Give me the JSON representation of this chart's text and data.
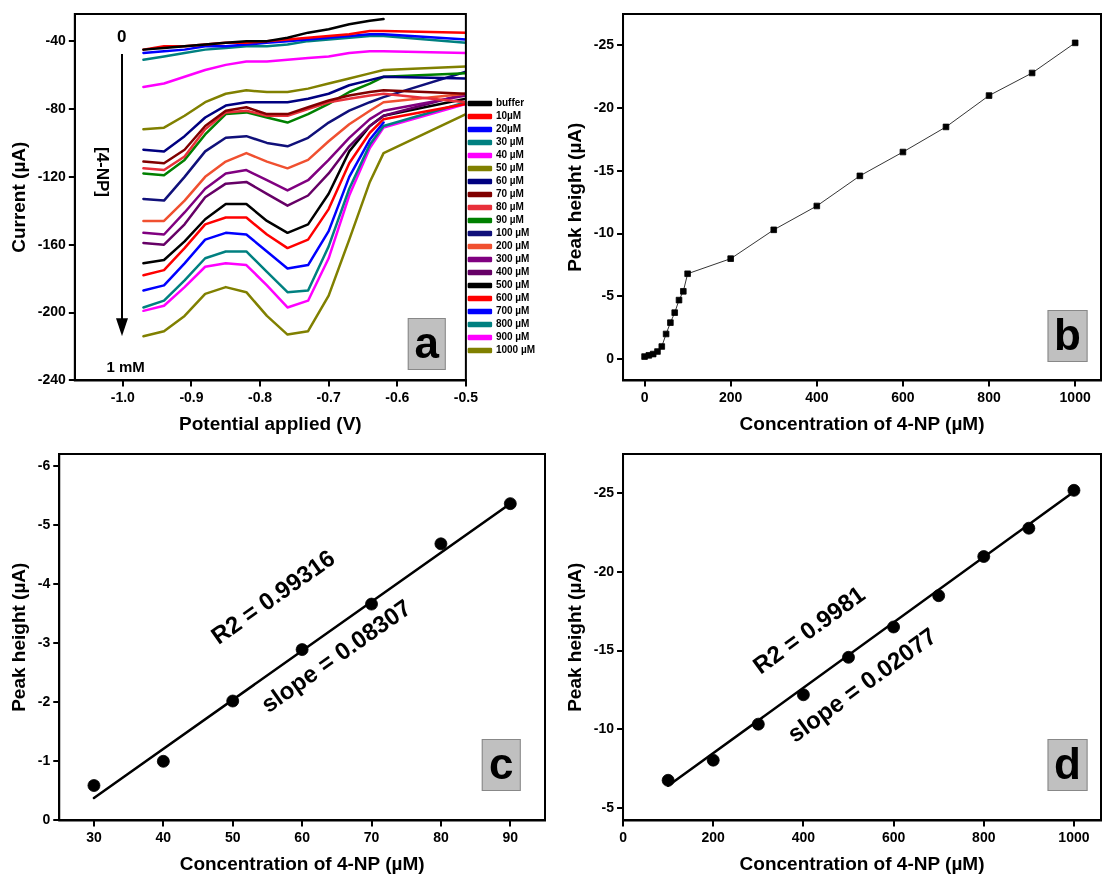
{
  "chart_data": [
    {
      "type": "line",
      "xlabel": "Potential applied (V)",
      "ylabel": "Current (µA)",
      "marker": "none",
      "legend": "right",
      "xlim": [
        -1.07,
        -0.5
      ],
      "xticks": [
        {
          "value": -1,
          "label": "-1.0"
        },
        -0.9,
        -0.8,
        -0.7,
        -0.6,
        -0.5
      ],
      "ylim": [
        -240,
        -24
      ],
      "yticks": [
        -240,
        -200,
        -160,
        -120,
        -80,
        -40
      ],
      "x": [
        -0.97,
        -0.94,
        -0.91,
        -0.88,
        -0.85,
        -0.82,
        -0.79,
        -0.76,
        -0.73,
        -0.7,
        -0.67,
        -0.64,
        -0.62,
        -0.5
      ],
      "series": [
        {
          "name": "buffer",
          "color": "#000000",
          "values": [
            -45,
            -44,
            -43,
            -42,
            -41,
            -40,
            -40,
            -38,
            -35,
            -33,
            -30,
            -28,
            -27,
            null
          ]
        },
        {
          "name": "10µM",
          "color": "#ff0000",
          "values": [
            -45,
            -43,
            -43,
            -42,
            -41,
            -41,
            -40,
            -39,
            -38,
            -37,
            -36,
            -34,
            -34,
            -35
          ]
        },
        {
          "name": "20µM",
          "color": "#0000ff",
          "values": [
            -47,
            -46,
            -45,
            -43,
            -43,
            -42,
            -41,
            -40,
            -39,
            -38,
            -37,
            -36,
            -36,
            -39
          ]
        },
        {
          "name": "30 µM",
          "color": "#008080",
          "values": [
            -51,
            -49,
            -47,
            -45,
            -44,
            -43,
            -43,
            -42,
            -40,
            -39,
            -38,
            -37,
            -37,
            -41
          ]
        },
        {
          "name": "40 µM",
          "color": "#ff00ff",
          "values": [
            -67,
            -65,
            -61,
            -57,
            -54,
            -52,
            -52,
            -51,
            -50,
            -49,
            -47,
            -46,
            -46,
            -47
          ]
        },
        {
          "name": "50 µM",
          "color": "#808000",
          "values": [
            -92,
            -91,
            -84,
            -76,
            -71,
            -69,
            -70,
            -70,
            -68,
            -65,
            -62,
            -59,
            -57,
            -55
          ]
        },
        {
          "name": "60 µM",
          "color": "#000080",
          "values": [
            -104,
            -105,
            -96,
            -85,
            -78,
            -76,
            -76,
            -76,
            -74,
            -71,
            -66,
            -63,
            -61,
            -62
          ]
        },
        {
          "name": "70 µM",
          "color": "#800000",
          "values": [
            -111,
            -112,
            -104,
            -90,
            -81,
            -79,
            -83,
            -83,
            -79,
            -75,
            -72,
            -70,
            -69,
            -71
          ]
        },
        {
          "name": "80 µM",
          "color": "#e8303a",
          "values": [
            -115,
            -116,
            -108,
            -92,
            -82,
            -81,
            -84,
            -84,
            -80,
            -76,
            -74,
            -72,
            -71,
            -76
          ]
        },
        {
          "name": "90 µM",
          "color": "#008000",
          "values": [
            -118,
            -119,
            -110,
            -95,
            -83,
            -82,
            -85,
            -88,
            -83,
            -77,
            -70,
            -65,
            -61,
            -59
          ]
        },
        {
          "name": "100 µM",
          "color": "#10107a",
          "values": [
            -133,
            -134,
            -120,
            -105,
            -97,
            -96,
            -100,
            -102,
            -97,
            -88,
            -81,
            -76,
            -73,
            -58
          ]
        },
        {
          "name": "200 µM",
          "color": "#f05030",
          "values": [
            -146,
            -146,
            -134,
            -120,
            -111,
            -106,
            -111,
            -115,
            -110,
            -99,
            -89,
            -81,
            -76,
            -71
          ]
        },
        {
          "name": "300 µM",
          "color": "#800080",
          "values": [
            -153,
            -154,
            -141,
            -127,
            -118,
            -116,
            -122,
            -128,
            -122,
            -110,
            -97,
            -86,
            -81,
            -72
          ]
        },
        {
          "name": "400 µM",
          "color": "#660066",
          "values": [
            -159,
            -160,
            -148,
            -132,
            -124,
            -123,
            -130,
            -137,
            -131,
            -118,
            -102,
            -90,
            -84,
            -71
          ]
        },
        {
          "name": "500 µM",
          "color": "#000000",
          "values": [
            -171,
            -169,
            -158,
            -145,
            -136,
            -136,
            -146,
            -153,
            -148,
            -130,
            -105,
            -90,
            -84,
            -74
          ]
        },
        {
          "name": "600 µM",
          "color": "#ff0000",
          "values": [
            -178,
            -175,
            -162,
            -148,
            -144,
            -144,
            -154,
            -162,
            -157,
            -139,
            -112,
            -94,
            -86,
            -77
          ]
        },
        {
          "name": "700 µM",
          "color": "#0000ff",
          "values": [
            -187,
            -184,
            -171,
            -157,
            -153,
            -154,
            -164,
            -174,
            -172,
            -152,
            -120,
            -98,
            -88,
            null
          ]
        },
        {
          "name": "800 µM",
          "color": "#008080",
          "values": [
            -197,
            -193,
            -181,
            -168,
            -164,
            -164,
            -176,
            -188,
            -187,
            -161,
            -127,
            -101,
            -90,
            -76
          ]
        },
        {
          "name": "900 µM",
          "color": "#ff00ff",
          "values": [
            -199,
            -196,
            -185,
            -173,
            -171,
            -172,
            -184,
            -197,
            -193,
            -168,
            -131,
            -103,
            -91,
            -77
          ]
        },
        {
          "name": "1000 µM",
          "color": "#808000",
          "values": [
            -214,
            -211,
            -202,
            -189,
            -185,
            -188,
            -202,
            -213,
            -211,
            -190,
            -157,
            -123,
            -106,
            -83
          ]
        }
      ],
      "annotations": [
        "0",
        "[4-NP]",
        "1 mM",
        "a"
      ]
    },
    {
      "type": "line",
      "xlabel": "Concentration of 4-NP (µM)",
      "ylabel": "Peak height (µA)",
      "marker": "square",
      "xlim": [
        -50,
        1060
      ],
      "xticks": [
        0,
        200,
        400,
        600,
        800,
        1000
      ],
      "ylim": [
        1.7,
        -27.5
      ],
      "yticks": [
        0,
        -5,
        -10,
        -15,
        -20,
        -25
      ],
      "x": [
        0,
        10,
        20,
        30,
        40,
        50,
        60,
        70,
        80,
        90,
        100,
        200,
        300,
        400,
        500,
        600,
        700,
        800,
        900,
        1000
      ],
      "series": [
        {
          "color": "#000000",
          "values": [
            -0.2,
            -0.3,
            -0.4,
            -0.6,
            -1.0,
            -2.0,
            -2.9,
            -3.7,
            -4.7,
            -5.4,
            -6.8,
            -8.0,
            -10.3,
            -12.2,
            -14.6,
            -16.5,
            -18.5,
            -21.0,
            -22.8,
            -25.2
          ]
        }
      ],
      "annotations": [
        "b"
      ]
    },
    {
      "type": "scatter",
      "xlabel": "Concentration of 4-NP (µM)",
      "ylabel": "Peak height (µA)",
      "marker": "circle",
      "xlim": [
        25,
        95
      ],
      "xticks": [
        30,
        40,
        50,
        60,
        70,
        80,
        90
      ],
      "ylim": [
        0,
        -6.2
      ],
      "yticks": [
        0,
        -1,
        -2,
        -3,
        -4,
        -5,
        -6
      ],
      "series": [
        {
          "color": "#000000",
          "x": [
            30,
            40,
            50,
            60,
            70,
            80,
            90
          ],
          "values": [
            -0.59,
            -1.0,
            -2.02,
            -2.89,
            -3.66,
            -4.68,
            -5.36
          ]
        },
        {
          "type": "line",
          "marker": "none",
          "color": "#000000",
          "x": [
            30,
            90
          ],
          "values": [
            -0.38,
            -5.36
          ]
        }
      ],
      "annotations": [
        "R2 = 0.99316",
        "slope = 0.08307",
        "c"
      ]
    },
    {
      "type": "scatter",
      "xlabel": "Concentration of 4-NP (µM)",
      "ylabel": "Peak height (µA)",
      "marker": "circle",
      "xlim": [
        0,
        1060
      ],
      "xticks": [
        0,
        200,
        400,
        600,
        800,
        1000
      ],
      "ylim": [
        -4.2,
        -27.5
      ],
      "yticks": [
        -5,
        -10,
        -15,
        -20,
        -25
      ],
      "series": [
        {
          "color": "#000000",
          "x": [
            100,
            200,
            300,
            400,
            500,
            600,
            700,
            800,
            900,
            1000
          ],
          "values": [
            -6.75,
            -8.03,
            -10.32,
            -12.19,
            -14.57,
            -16.5,
            -18.49,
            -20.98,
            -22.78,
            -25.19
          ]
        },
        {
          "type": "line",
          "marker": "none",
          "color": "#000000",
          "x": [
            100,
            1000
          ],
          "values": [
            -6.4,
            -25.1
          ]
        }
      ],
      "annotations": [
        "R2 = 0.9981",
        "slope = 0.02077",
        "d"
      ]
    }
  ]
}
